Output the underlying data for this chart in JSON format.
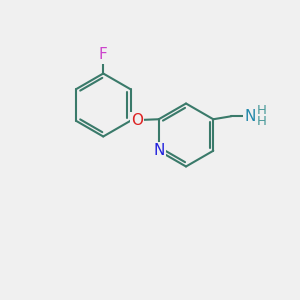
{
  "bg_color": "#f0f0f0",
  "bond_color": "#3a7a6a",
  "bond_width": 1.5,
  "atom_colors": {
    "F": "#cc44cc",
    "O": "#dd2222",
    "N_pyridine": "#2222dd",
    "N_amine": "#2288aa",
    "H": "#4a9a9a"
  },
  "font_size_atoms": 11,
  "font_size_H": 9.5
}
